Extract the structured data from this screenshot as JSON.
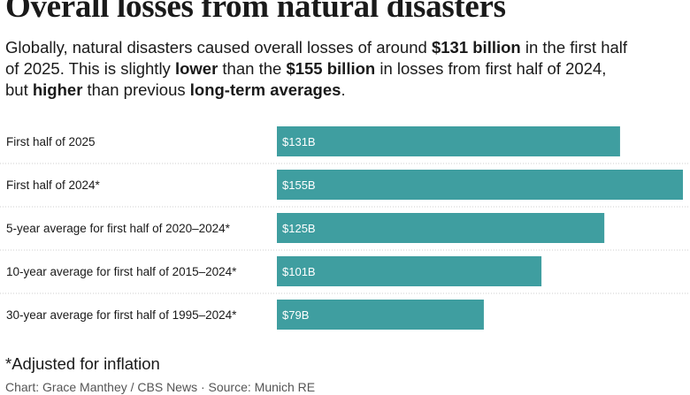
{
  "title": "Overall losses from natural disasters",
  "subtitle": {
    "line1_pre": "Globally, natural disasters caused overall losses of around ",
    "line1_bold": "$131 billion",
    "line1_post": " in the first half",
    "line2_pre": "of 2025. This is slightly ",
    "line2_bold1": "lower",
    "line2_mid": " than the ",
    "line2_bold2": "$155 billion",
    "line2_post": " in losses from first half of 2024,",
    "line3_pre": "but ",
    "line3_bold1": "higher",
    "line3_mid": " than previous ",
    "line3_bold2": "long-term averages",
    "line3_post": "."
  },
  "colors": {
    "bar": "#3f9ea0",
    "divider": "#cfcfcf"
  },
  "chart_data": {
    "type": "bar",
    "orientation": "horizontal",
    "categories": [
      "First half of 2025",
      "First half of 2024*",
      "5-year average for first half of 2020–2024*",
      "10-year average for first half of 2015–2024*",
      "30-year average for first half of 1995–2024*"
    ],
    "values": [
      131,
      155,
      125,
      101,
      79
    ],
    "value_labels": [
      "$131B",
      "$155B",
      "$125B",
      "$101B",
      "$79B"
    ],
    "unit": "billion USD",
    "xlim": [
      0,
      155
    ],
    "grid": false,
    "legend": "none"
  },
  "footnote": "*Adjusted for inflation",
  "credit": "Chart: Grace Manthey / CBS News · Source: Munich RE"
}
